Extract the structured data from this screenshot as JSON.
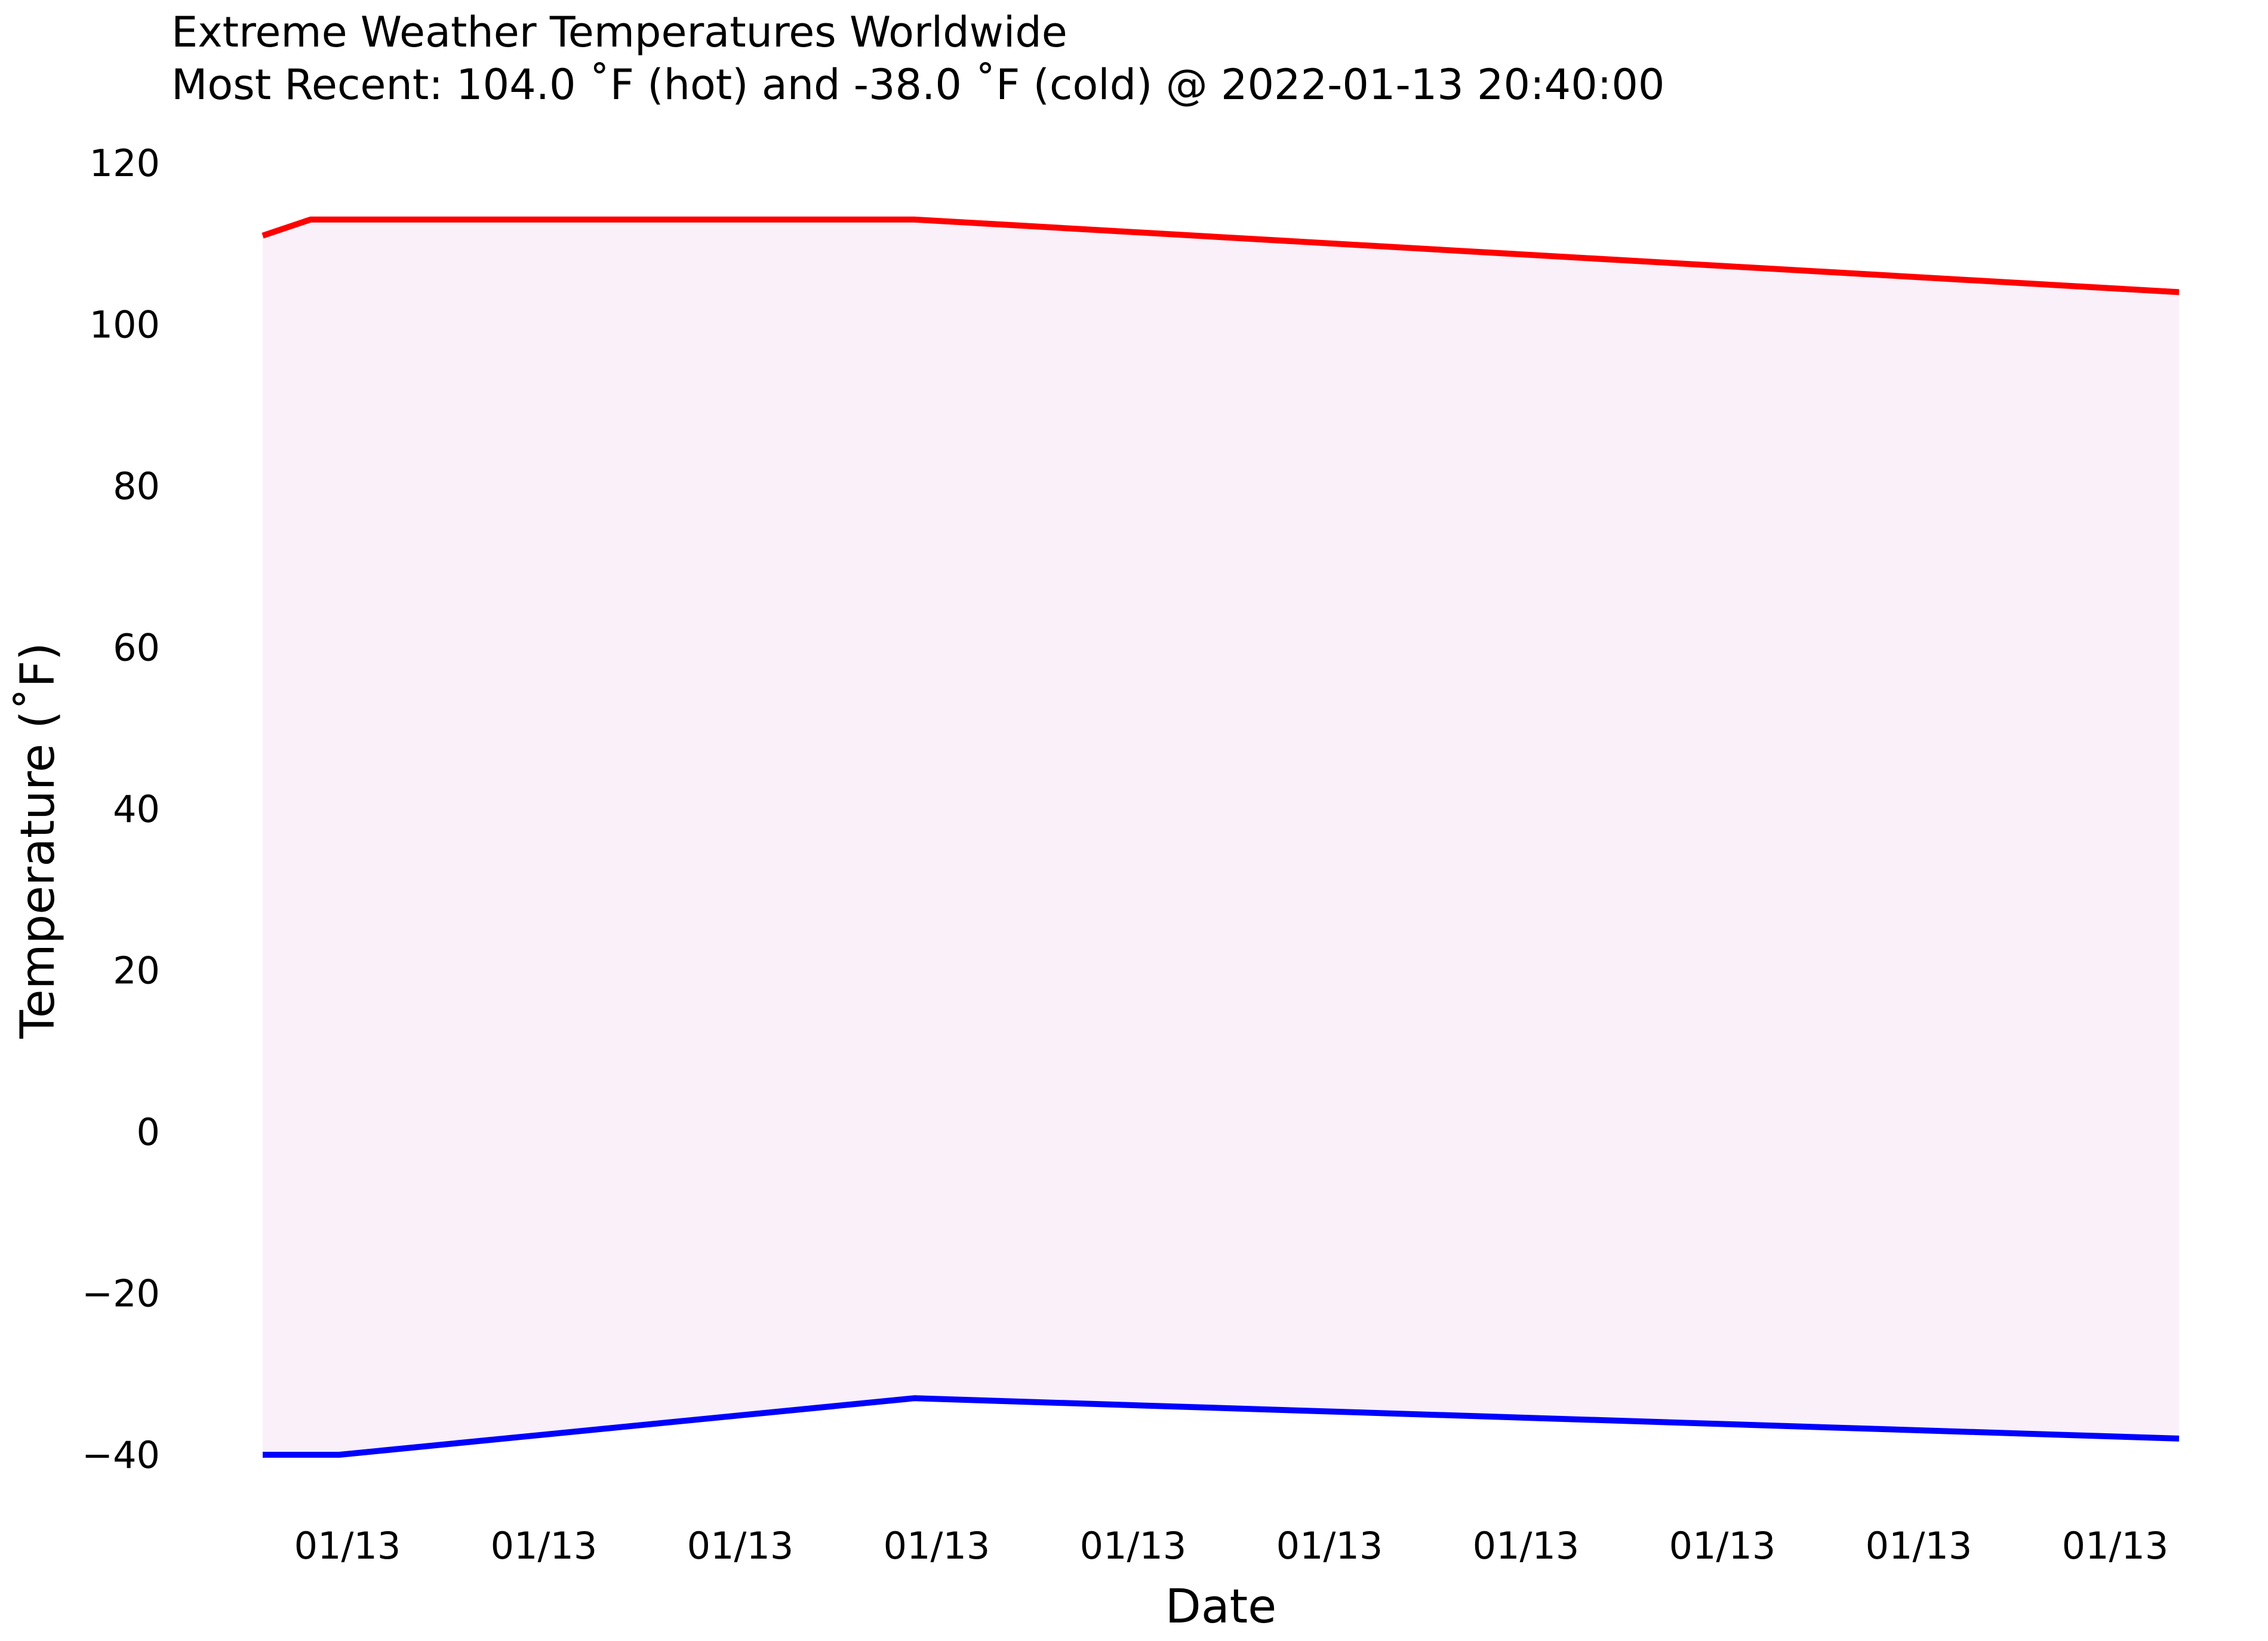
{
  "chart_data": {
    "type": "area",
    "title": "Extreme Weather Temperatures Worldwide",
    "subtitle": "Most Recent: 104.0 ˚F (hot) and -38.0 ˚F (cold) @ 2022-01-13 20:40:00",
    "xlabel": "Date",
    "ylabel": "Temperature (˚F)",
    "ylim": [
      -45,
      120
    ],
    "y_ticks": [
      120,
      100,
      80,
      60,
      40,
      20,
      0,
      -20,
      -40
    ],
    "y_tick_labels": [
      "120",
      "100",
      "80",
      "60",
      "40",
      "20",
      "0",
      "−20",
      "−40"
    ],
    "x_tick_labels": [
      "01/13",
      "01/13",
      "01/13",
      "01/13",
      "01/13",
      "01/13",
      "01/13",
      "01/13",
      "01/13",
      "01/13"
    ],
    "grid": false,
    "legend": "none",
    "x": [
      0,
      0.25,
      0.4,
      3.4,
      10
    ],
    "series": [
      {
        "values": [
          111,
          113,
          113,
          113,
          104
        ],
        "color": "#ff0000"
      },
      {
        "values": [
          -40,
          -40,
          -40,
          -33,
          -38
        ],
        "color": "#0000ff"
      }
    ],
    "fill_between": {
      "color": "#f9f0f9"
    }
  }
}
